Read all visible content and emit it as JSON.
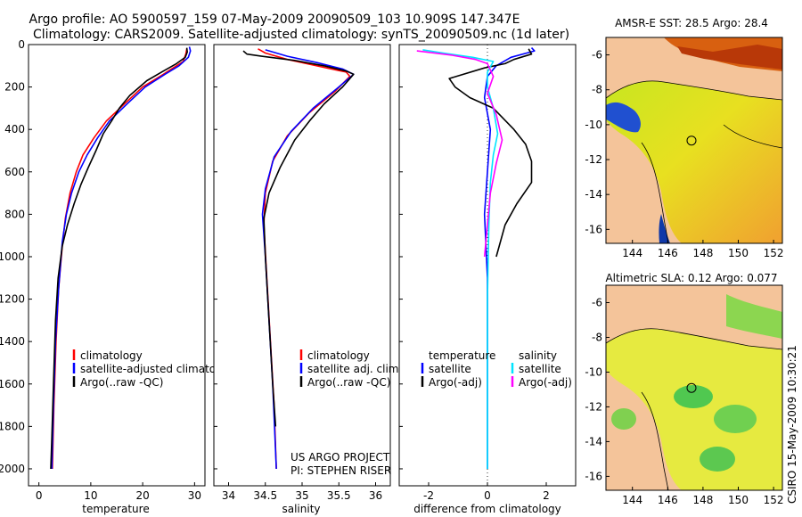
{
  "header": {
    "line1": "Argo profile: AO 5900597_159 07-May-2009 20090509_103 10.909S 147.347E",
    "line2": "Climatology: CARS2009. Satellite-adjusted climatology: synTS_20090509.nc (1d later)"
  },
  "side_label": "CSIRO 15-May-2009 10:30:21",
  "project": {
    "line1": "US ARGO PROJECT",
    "line2": "PI: STEPHEN RISER"
  },
  "colors": {
    "climatology": "#ff0000",
    "satellite": "#0000ff",
    "argo": "#000000",
    "cyan": "#00e5ff",
    "magenta": "#ff00ff",
    "land": "#f4c49a"
  },
  "chart_data": [
    {
      "id": "temp",
      "type": "line",
      "xlabel": "temperature",
      "ylabel": "",
      "xlim": [
        -2,
        32
      ],
      "ylim": [
        2080,
        0
      ],
      "xticks": [
        0,
        10,
        20,
        30
      ],
      "yticks": [
        0,
        200,
        400,
        600,
        800,
        1000,
        1200,
        1400,
        1600,
        1800,
        2000
      ],
      "legend": [
        "climatology",
        "satellite-adjusted climatology",
        "Argo(..raw -QC)"
      ],
      "series": [
        {
          "name": "climatology",
          "color": "#ff0000",
          "points": [
            [
              28.5,
              20
            ],
            [
              28.3,
              45
            ],
            [
              27.8,
              80
            ],
            [
              26.5,
              100
            ],
            [
              24,
              140
            ],
            [
              20,
              200
            ],
            [
              16.5,
              280
            ],
            [
              13,
              360
            ],
            [
              10.6,
              440
            ],
            [
              8.5,
              520
            ],
            [
              7.2,
              600
            ],
            [
              6,
              700
            ],
            [
              5.1,
              820
            ],
            [
              4.5,
              950
            ],
            [
              3.8,
              1150
            ],
            [
              3.3,
              1400
            ],
            [
              2.9,
              1700
            ],
            [
              2.6,
              2000
            ]
          ]
        },
        {
          "name": "satellite-adjusted climatology",
          "color": "#0000ff",
          "points": [
            [
              29,
              10
            ],
            [
              29.2,
              30
            ],
            [
              28.8,
              60
            ],
            [
              27,
              100
            ],
            [
              24.3,
              140
            ],
            [
              20.5,
              200
            ],
            [
              17,
              280
            ],
            [
              13.6,
              360
            ],
            [
              11.3,
              440
            ],
            [
              9.3,
              520
            ],
            [
              7.7,
              600
            ],
            [
              6.3,
              700
            ],
            [
              5.3,
              800
            ],
            [
              4.5,
              930
            ],
            [
              3.8,
              1150
            ],
            [
              3.2,
              1400
            ],
            [
              2.8,
              1700
            ],
            [
              2.5,
              2000
            ]
          ]
        },
        {
          "name": "Argo(..raw -QC)",
          "color": "#000000",
          "points": [
            [
              28.5,
              15
            ],
            [
              28.6,
              35
            ],
            [
              28.2,
              60
            ],
            [
              26.5,
              90
            ],
            [
              24,
              125
            ],
            [
              20.8,
              170
            ],
            [
              17.5,
              240
            ],
            [
              15.5,
              300
            ],
            [
              14,
              360
            ],
            [
              12.4,
              420
            ],
            [
              11,
              500
            ],
            [
              9.5,
              580
            ],
            [
              8.1,
              660
            ],
            [
              6.8,
              750
            ],
            [
              5.5,
              850
            ],
            [
              4.5,
              950
            ],
            [
              3.7,
              1100
            ],
            [
              3.2,
              1300
            ],
            [
              2.8,
              1600
            ],
            [
              2.5,
              1850
            ],
            [
              2.3,
              2000
            ]
          ]
        }
      ]
    },
    {
      "id": "salt",
      "type": "line",
      "xlabel": "salinity",
      "ylabel": "",
      "xlim": [
        33.8,
        36.2
      ],
      "ylim": [
        2080,
        0
      ],
      "xticks": [
        34,
        34.5,
        35,
        35.5,
        36
      ],
      "xticklabels": [
        "34",
        "34.5",
        "35",
        "35.5",
        "36"
      ],
      "legend": [
        "climatology",
        "satellite adj. clim.",
        "Argo(..raw -QC)"
      ],
      "series": [
        {
          "name": "climatology",
          "color": "#ff0000",
          "points": [
            [
              34.4,
              20
            ],
            [
              34.5,
              40
            ],
            [
              34.8,
              70
            ],
            [
              35.2,
              100
            ],
            [
              35.6,
              130
            ],
            [
              35.65,
              150
            ],
            [
              35.45,
              220
            ],
            [
              35.1,
              320
            ],
            [
              34.8,
              430
            ],
            [
              34.6,
              550
            ],
            [
              34.5,
              700
            ],
            [
              34.48,
              850
            ],
            [
              34.52,
              1100
            ],
            [
              34.57,
              1400
            ],
            [
              34.62,
              1700
            ],
            [
              34.65,
              2000
            ]
          ]
        },
        {
          "name": "satellite adj. clim.",
          "color": "#0000ff",
          "points": [
            [
              34.5,
              25
            ],
            [
              34.8,
              55
            ],
            [
              35.2,
              85
            ],
            [
              35.55,
              115
            ],
            [
              35.7,
              140
            ],
            [
              35.5,
              200
            ],
            [
              35.15,
              300
            ],
            [
              34.85,
              410
            ],
            [
              34.62,
              530
            ],
            [
              34.5,
              680
            ],
            [
              34.46,
              800
            ],
            [
              34.5,
              1000
            ],
            [
              34.55,
              1300
            ],
            [
              34.6,
              1600
            ],
            [
              34.65,
              2000
            ]
          ]
        },
        {
          "name": "Argo(..raw -QC)",
          "color": "#000000",
          "points": [
            [
              34.2,
              30
            ],
            [
              34.25,
              45
            ],
            [
              34.45,
              55
            ],
            [
              34.9,
              75
            ],
            [
              35.3,
              100
            ],
            [
              35.6,
              125
            ],
            [
              35.7,
              140
            ],
            [
              35.55,
              200
            ],
            [
              35.3,
              280
            ],
            [
              35.1,
              360
            ],
            [
              34.9,
              450
            ],
            [
              34.7,
              580
            ],
            [
              34.55,
              700
            ],
            [
              34.48,
              820
            ],
            [
              34.5,
              1000
            ],
            [
              34.55,
              1300
            ],
            [
              34.6,
              1600
            ],
            [
              34.64,
              1800
            ]
          ]
        }
      ]
    },
    {
      "id": "diff",
      "type": "line",
      "xlabel": "difference from climatology",
      "ylabel": "",
      "xlim": [
        -3,
        3
      ],
      "ylim": [
        2080,
        0
      ],
      "xticks": [
        -2,
        0,
        2
      ],
      "legend_temperature": {
        "heading": "temperature",
        "items": [
          "satellite",
          "Argo(-adj)"
        ]
      },
      "legend_salinity": {
        "heading": "salinity",
        "items": [
          "satellite",
          "Argo(-adj)"
        ]
      },
      "series": [
        {
          "name": "temperature satellite",
          "color": "#0000ff",
          "points": [
            [
              1.5,
              15
            ],
            [
              1.6,
              30
            ],
            [
              0.8,
              60
            ],
            [
              0.3,
              100
            ],
            [
              0,
              150
            ],
            [
              -0.1,
              250
            ],
            [
              0.1,
              400
            ],
            [
              0,
              600
            ],
            [
              -0.1,
              800
            ],
            [
              0,
              1100
            ],
            [
              0,
              1500
            ],
            [
              0,
              2000
            ]
          ]
        },
        {
          "name": "temperature Argo(-adj)",
          "color": "#000000",
          "points": [
            [
              1.4,
              20
            ],
            [
              1.5,
              45
            ],
            [
              0.9,
              70
            ],
            [
              0.6,
              90
            ],
            [
              -0.1,
              110
            ],
            [
              -1.3,
              160
            ],
            [
              -1.1,
              200
            ],
            [
              -0.6,
              250
            ],
            [
              0.2,
              300
            ],
            [
              0.9,
              400
            ],
            [
              1.3,
              470
            ],
            [
              1.5,
              550
            ],
            [
              1.5,
              650
            ],
            [
              1.0,
              750
            ],
            [
              0.6,
              850
            ],
            [
              0.4,
              950
            ],
            [
              0.3,
              1000
            ]
          ]
        },
        {
          "name": "salinity satellite",
          "color": "#00e5ff",
          "points": [
            [
              -2.2,
              25
            ],
            [
              -1.5,
              40
            ],
            [
              -0.5,
              60
            ],
            [
              0.2,
              80
            ],
            [
              0,
              130
            ],
            [
              0,
              200
            ],
            [
              0.2,
              300
            ],
            [
              0.35,
              420
            ],
            [
              0.2,
              520
            ],
            [
              0.1,
              650
            ],
            [
              0.05,
              850
            ],
            [
              0,
              1200
            ],
            [
              0,
              2000
            ]
          ]
        },
        {
          "name": "salinity Argo(-adj)",
          "color": "#ff00ff",
          "points": [
            [
              -2.4,
              30
            ],
            [
              -1.2,
              50
            ],
            [
              -0.4,
              70
            ],
            [
              0,
              90
            ],
            [
              0.2,
              150
            ],
            [
              0,
              230
            ],
            [
              0.3,
              330
            ],
            [
              0.5,
              450
            ],
            [
              0.3,
              560
            ],
            [
              0.1,
              700
            ],
            [
              0,
              850
            ],
            [
              -0.1,
              1000
            ]
          ]
        }
      ]
    },
    {
      "id": "sst_map",
      "type": "heatmap",
      "title": "AMSR-E SST: 28.5 Argo: 28.4",
      "xlim": [
        142.5,
        152.5
      ],
      "ylim": [
        -16.8,
        -5
      ],
      "xticks": [
        144,
        146,
        148,
        150,
        152
      ],
      "yticks": [
        -6,
        -8,
        -10,
        -12,
        -14,
        -16
      ],
      "float_position": [
        147.35,
        -10.91
      ]
    },
    {
      "id": "sla_map",
      "type": "heatmap",
      "title": "Altimetric SLA: 0.12 Argo: 0.077",
      "xlim": [
        142.5,
        152.5
      ],
      "ylim": [
        -16.8,
        -5
      ],
      "xticks": [
        144,
        146,
        148,
        150,
        152
      ],
      "yticks": [
        -6,
        -8,
        -10,
        -12,
        -14,
        -16
      ],
      "float_position": [
        147.35,
        -10.91
      ]
    }
  ]
}
